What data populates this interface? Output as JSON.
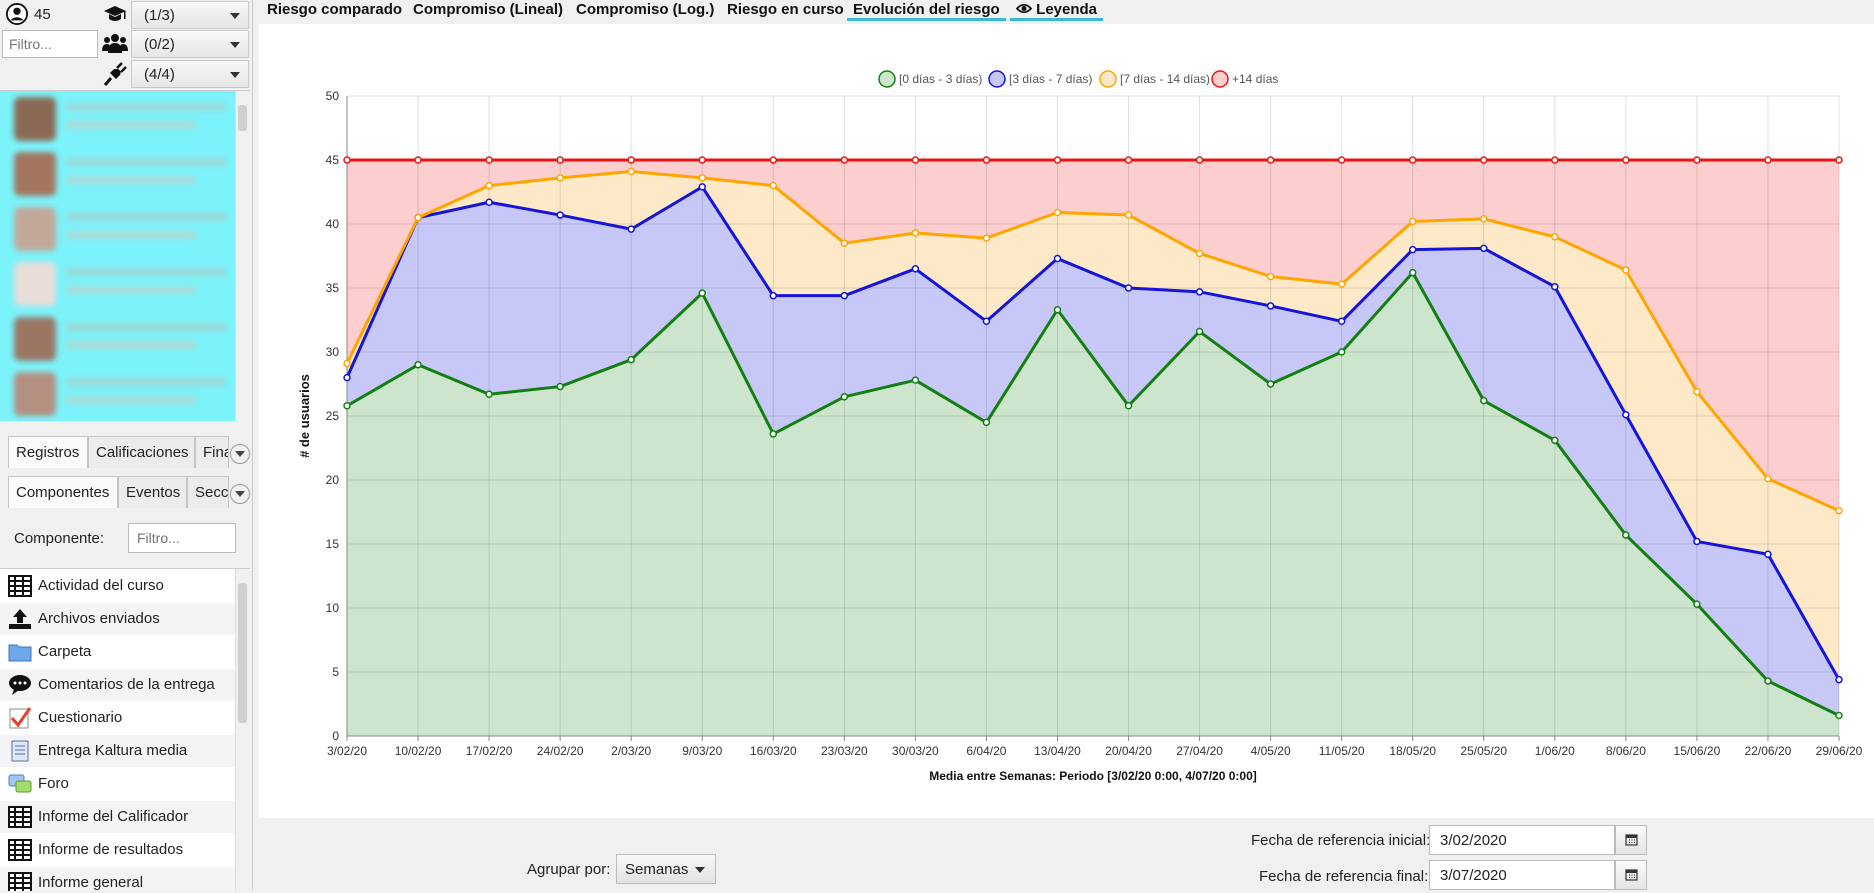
{
  "left": {
    "user_count": "45",
    "filter_placeholder": "Filtro...",
    "combos": [
      "(1/3)",
      "(0/2)",
      "(4/4)"
    ],
    "tabs_row1": [
      "Registros",
      "Calificaciones",
      "Fina"
    ],
    "tabs_row2": [
      "Componentes",
      "Eventos",
      "Secc"
    ],
    "component_label": "Componente:",
    "component_filter_placeholder": "Filtro...",
    "components": [
      {
        "label": "Actividad del curso",
        "icon": "table-icon"
      },
      {
        "label": "Archivos enviados",
        "icon": "upload-icon"
      },
      {
        "label": "Carpeta",
        "icon": "folder-icon"
      },
      {
        "label": "Comentarios de la entrega",
        "icon": "speech-bubble-icon"
      },
      {
        "label": "Cuestionario",
        "icon": "checklist-icon"
      },
      {
        "label": "Entrega Kaltura media",
        "icon": "document-icon"
      },
      {
        "label": "Foro",
        "icon": "forum-icon"
      },
      {
        "label": "Informe del Calificador",
        "icon": "table-icon"
      },
      {
        "label": "Informe de resultados",
        "icon": "table-icon"
      },
      {
        "label": "Informe general",
        "icon": "table-icon"
      }
    ]
  },
  "tabs": [
    "Riesgo comparado",
    "Compromiso (Lineal)",
    "Compromiso (Log.)",
    "Riesgo en curso",
    "Evolución del riesgo",
    "Leyenda"
  ],
  "chart_data": {
    "type": "area",
    "stacked": true,
    "xlabel": "Media entre Semanas: Periodo [3/02/20 0:00, 4/07/20 0:00]",
    "ylabel": "# de usuarios",
    "ylim": [
      0,
      50
    ],
    "yticks": [
      0,
      5,
      10,
      15,
      20,
      25,
      30,
      35,
      40,
      45,
      50
    ],
    "grid": true,
    "legend_position": "top",
    "categories": [
      "3/02/20",
      "10/02/20",
      "17/02/20",
      "24/02/20",
      "2/03/20",
      "9/03/20",
      "16/03/20",
      "23/03/20",
      "30/03/20",
      "6/04/20",
      "13/04/20",
      "20/04/20",
      "27/04/20",
      "4/05/20",
      "11/05/20",
      "18/05/20",
      "25/05/20",
      "1/06/20",
      "8/06/20",
      "15/06/20",
      "22/06/20",
      "29/06/20"
    ],
    "series": [
      {
        "name": "[0 días - 3 días)",
        "color": "#118011",
        "fill": "#cde5cd",
        "values": [
          25.8,
          29.0,
          26.7,
          27.3,
          29.4,
          34.6,
          23.6,
          26.5,
          27.8,
          24.5,
          33.3,
          25.8,
          31.6,
          27.5,
          30.0,
          36.2,
          26.2,
          23.1,
          15.7,
          10.3,
          4.3,
          1.6
        ]
      },
      {
        "name": "[3 días - 7 días)",
        "color": "#1414dc",
        "fill": "#c8c8f8",
        "values": [
          28.0,
          40.5,
          41.7,
          40.7,
          39.6,
          42.9,
          34.4,
          34.4,
          36.5,
          32.4,
          37.3,
          35.0,
          34.7,
          33.6,
          32.4,
          38.0,
          38.1,
          35.1,
          25.1,
          15.2,
          14.2,
          4.4
        ]
      },
      {
        "name": "[7 días - 14 días)",
        "color": "#ffa500",
        "fill": "#fde9c8",
        "values": [
          29.1,
          40.5,
          43.0,
          43.6,
          44.1,
          43.6,
          43.0,
          38.5,
          39.3,
          38.9,
          40.9,
          40.7,
          37.7,
          35.9,
          35.3,
          40.2,
          40.4,
          39.0,
          36.4,
          26.9,
          20.1,
          17.6
        ]
      },
      {
        "name": "+14 días",
        "color": "#e81414",
        "fill": "#fdcece",
        "values": [
          45,
          45,
          45,
          45,
          45,
          45,
          45,
          45,
          45,
          45,
          45,
          45,
          45,
          45,
          45,
          45,
          45,
          45,
          45,
          45,
          45,
          45
        ]
      }
    ]
  },
  "bottom": {
    "group_by_label": "Agrupar por:",
    "group_by_value": "Semanas",
    "start_label": "Fecha de referencia inicial:",
    "start_value": "3/02/2020",
    "end_label": "Fecha de referencia final:",
    "end_value": "3/07/2020"
  }
}
